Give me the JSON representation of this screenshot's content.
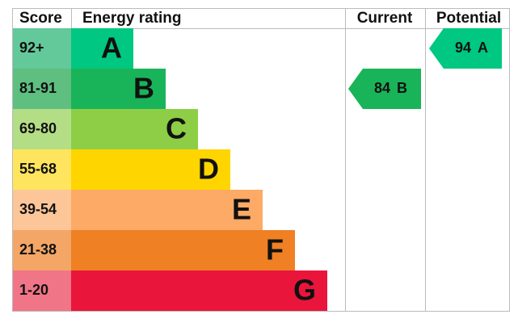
{
  "header": {
    "score": "Score",
    "rating": "Energy rating",
    "current": "Current",
    "potential": "Potential"
  },
  "bands": [
    {
      "score": "92+",
      "letter": "A",
      "color": "#00c781",
      "score_color": "#63c99b"
    },
    {
      "score": "81-91",
      "letter": "B",
      "color": "#19b459",
      "score_color": "#5fbf80"
    },
    {
      "score": "69-80",
      "letter": "C",
      "color": "#8dce46",
      "score_color": "#b4de86"
    },
    {
      "score": "55-68",
      "letter": "D",
      "color": "#ffd500",
      "score_color": "#ffe45e"
    },
    {
      "score": "39-54",
      "letter": "E",
      "color": "#fcaa65",
      "score_color": "#fdc699"
    },
    {
      "score": "21-38",
      "letter": "F",
      "color": "#ef8023",
      "score_color": "#f3a666"
    },
    {
      "score": "1-20",
      "letter": "G",
      "color": "#e9153b",
      "score_color": "#f07587"
    }
  ],
  "current": {
    "value": 84,
    "letter": "B",
    "color": "#19b459"
  },
  "potential": {
    "value": 94,
    "letter": "A",
    "color": "#00c781"
  }
}
